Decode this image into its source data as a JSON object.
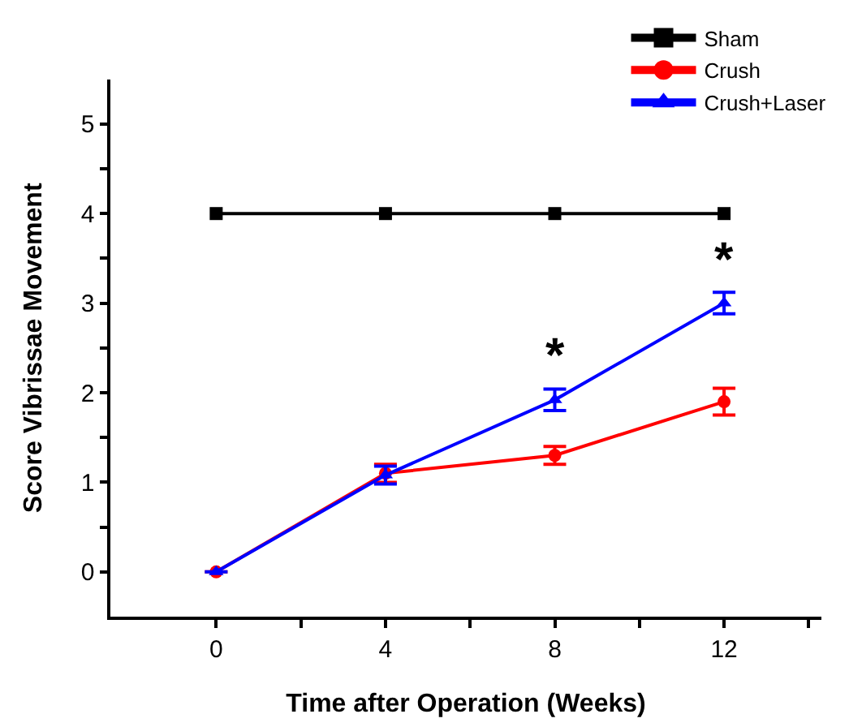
{
  "chart_data": {
    "type": "line",
    "xlabel": "Time after Operation (Weeks)",
    "ylabel": "Score Vibrissae Movement",
    "x": [
      0,
      4,
      8,
      12
    ],
    "series": [
      {
        "name": "Sham",
        "color": "#000000",
        "marker": "square",
        "values": [
          4,
          4,
          4,
          4
        ]
      },
      {
        "name": "Crush",
        "color": "#ff0000",
        "marker": "circle",
        "values": [
          0,
          1.1,
          1.3,
          1.9
        ],
        "errors": [
          null,
          0.1,
          0.1,
          0.15
        ]
      },
      {
        "name": "Crush+Laser",
        "color": "#0000ff",
        "marker": "triangle",
        "values": [
          0,
          1.08,
          1.92,
          3.0
        ],
        "errors": [
          null,
          0.1,
          0.12,
          0.12
        ]
      }
    ],
    "xlim": [
      -2.5,
      14.3
    ],
    "xticks": [
      0,
      {
        "value": 2,
        "label": null
      },
      4,
      {
        "value": 6,
        "label": null
      },
      8,
      {
        "value": 10,
        "label": null
      },
      12,
      {
        "value": 14,
        "label": null
      }
    ],
    "ylim": [
      -0.5,
      5.5
    ],
    "yticks": [
      0,
      {
        "value": 0.5,
        "label": null
      },
      1,
      {
        "value": 1.5,
        "label": null
      },
      2,
      {
        "value": 2.5,
        "label": null
      },
      3,
      {
        "value": 3.5,
        "label": null
      },
      4,
      {
        "value": 4.5,
        "label": null
      },
      5
    ],
    "annotations": [
      {
        "text": "*",
        "x": 8,
        "y": 1.92
      },
      {
        "text": "*",
        "x": 12,
        "y": 3.0
      }
    ],
    "grid": false,
    "legend": "top right"
  }
}
